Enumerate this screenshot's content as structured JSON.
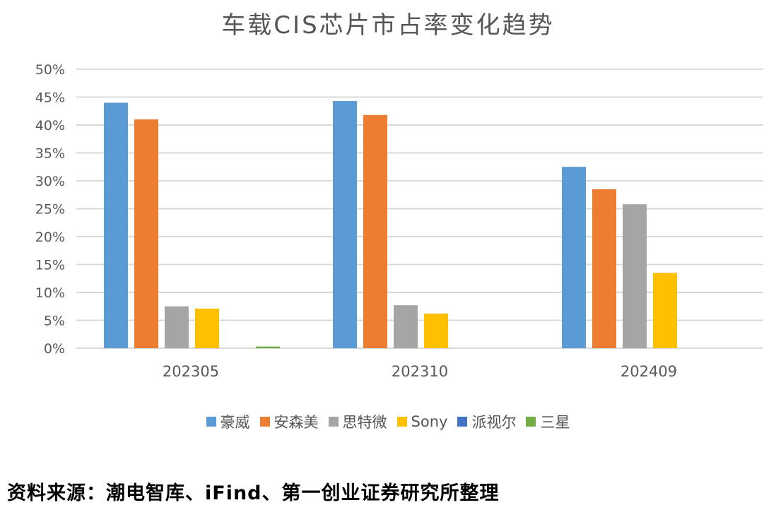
{
  "chart_data": {
    "type": "bar",
    "title": "车载CIS芯片市占率变化趋势",
    "categories": [
      "202305",
      "202310",
      "202409"
    ],
    "series": [
      {
        "name": "豪威",
        "color": "#5B9BD5",
        "values": [
          44.0,
          44.3,
          32.5
        ]
      },
      {
        "name": "安森美",
        "color": "#ED7D31",
        "values": [
          41.0,
          41.8,
          28.5
        ]
      },
      {
        "name": "思特微",
        "color": "#A5A5A5",
        "values": [
          7.5,
          7.7,
          25.8
        ]
      },
      {
        "name": "Sony",
        "color": "#FFC000",
        "values": [
          7.1,
          6.2,
          13.5
        ]
      },
      {
        "name": "派视尔",
        "color": "#4472C4",
        "values": [
          0,
          0,
          0
        ]
      },
      {
        "name": "三星",
        "color": "#70AD47",
        "values": [
          0.3,
          0,
          0
        ]
      }
    ],
    "ylim": [
      0,
      50
    ],
    "yticks": [
      "0%",
      "5%",
      "10%",
      "15%",
      "20%",
      "25%",
      "30%",
      "35%",
      "40%",
      "45%",
      "50%"
    ],
    "grid": true,
    "legend_position": "bottom"
  },
  "source": "资料来源：潮电智库、iFind、第一创业证券研究所整理"
}
